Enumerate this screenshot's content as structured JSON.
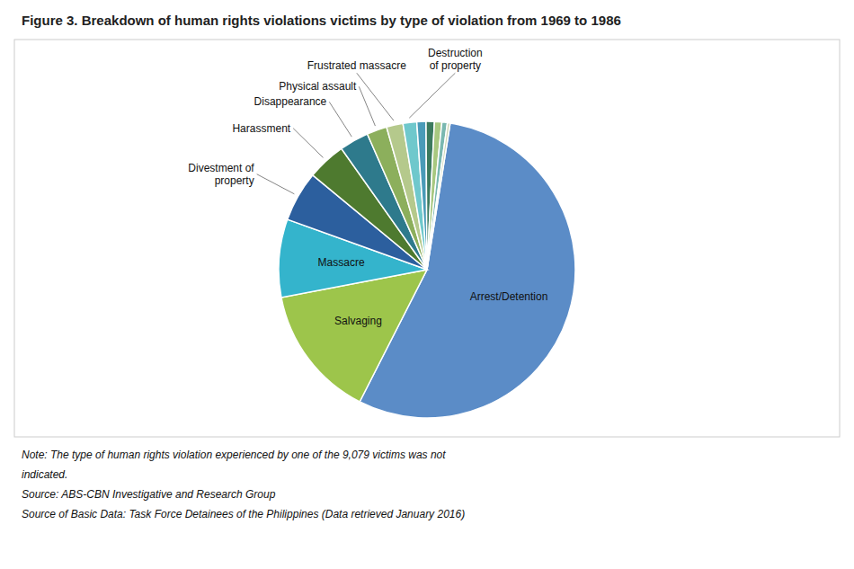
{
  "chart_data": {
    "type": "pie",
    "title": "Figure 3. Breakdown of human rights violations victims by type of violation from 1969 to 1986",
    "categories": [
      "Arrest/Detention",
      "Salvaging",
      "Massacre",
      "Divestment of\nproperty",
      "Harassment",
      "Disappearance",
      "Physical assault",
      "Frustrated massacre",
      "Destruction\nof property",
      null,
      null,
      null,
      null,
      null
    ],
    "values": [
      55.0,
      14.5,
      8.5,
      5.5,
      4.2,
      3.2,
      2.2,
      1.8,
      1.5,
      1.0,
      0.9,
      0.8,
      0.6,
      0.3
    ],
    "colors": [
      "#5b8cc7",
      "#9dc54b",
      "#34b4cc",
      "#2c5f9e",
      "#4e7a2f",
      "#2e7a8c",
      "#8caf5c",
      "#b5c98c",
      "#6fc8cc",
      "#4a9bb8",
      "#3c7a5e",
      "#a8c880",
      "#7ab8b0",
      "#d0d8b8"
    ],
    "notes": [
      "Note: The type of human rights violation experienced by one of the 9,079 victims was not",
      "indicated.",
      "Source:  ABS-CBN Investigative and Research Group",
      "Source of Basic Data: Task Force Detainees of the Philippines (Data retrieved January 2016)"
    ]
  }
}
